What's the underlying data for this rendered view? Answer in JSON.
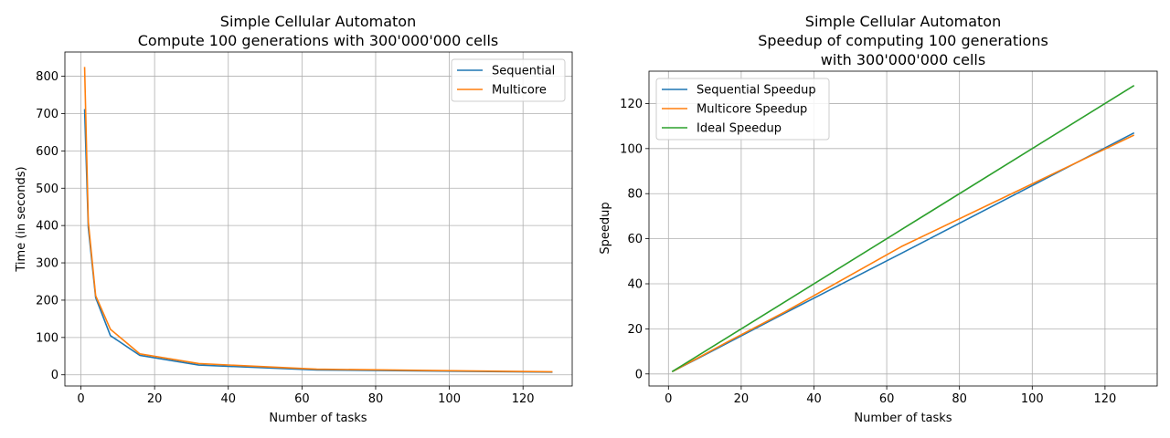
{
  "chart_data": [
    {
      "type": "line",
      "title": "Simple Cellular Automaton",
      "subtitle": "Compute 100 generations with 300'000'000 cells",
      "xlabel": "Number of tasks",
      "ylabel": "Time (in seconds)",
      "xlim": [
        -4.35,
        133.35
      ],
      "ylim": [
        -30,
        865
      ],
      "xticks": [
        0,
        20,
        40,
        60,
        80,
        100,
        120
      ],
      "yticks": [
        0,
        100,
        200,
        300,
        400,
        500,
        600,
        700,
        800
      ],
      "grid": true,
      "legend_position": "upper-right",
      "x": [
        1,
        2,
        4,
        8,
        16,
        32,
        64,
        128
      ],
      "series": [
        {
          "name": "Sequential",
          "color": "#1f77b4",
          "values": [
            712,
            395,
            207,
            105,
            52,
            26,
            13,
            7
          ]
        },
        {
          "name": "Multicore",
          "color": "#ff7f0e",
          "values": [
            825,
            410,
            212,
            122,
            56,
            30,
            15,
            8
          ]
        }
      ]
    },
    {
      "type": "line",
      "title": "Simple Cellular Automaton",
      "subtitle": "Speedup of computing 100 generations",
      "subtitle2": "with 300'000'000 cells",
      "xlabel": "Number of tasks",
      "ylabel": "Speedup",
      "xlim": [
        -5.35,
        134.35
      ],
      "ylim": [
        -5.35,
        134.35
      ],
      "xticks": [
        0,
        20,
        40,
        60,
        80,
        100,
        120
      ],
      "yticks": [
        0,
        20,
        40,
        60,
        80,
        100,
        120
      ],
      "grid": true,
      "legend_position": "upper-left",
      "x": [
        1,
        2,
        4,
        8,
        16,
        32,
        64,
        128
      ],
      "series": [
        {
          "name": "Sequential Speedup",
          "color": "#1f77b4",
          "values": [
            1,
            1.8,
            3.5,
            6.8,
            13.5,
            27,
            53.5,
            107
          ]
        },
        {
          "name": "Multicore Speedup",
          "color": "#ff7f0e",
          "values": [
            1,
            1.8,
            3.6,
            7.0,
            14.0,
            27.5,
            56.5,
            106
          ]
        },
        {
          "name": "Ideal Speedup",
          "color": "#2ca02c",
          "values": [
            1,
            2,
            4,
            8,
            16,
            32,
            64,
            128
          ]
        }
      ]
    }
  ]
}
